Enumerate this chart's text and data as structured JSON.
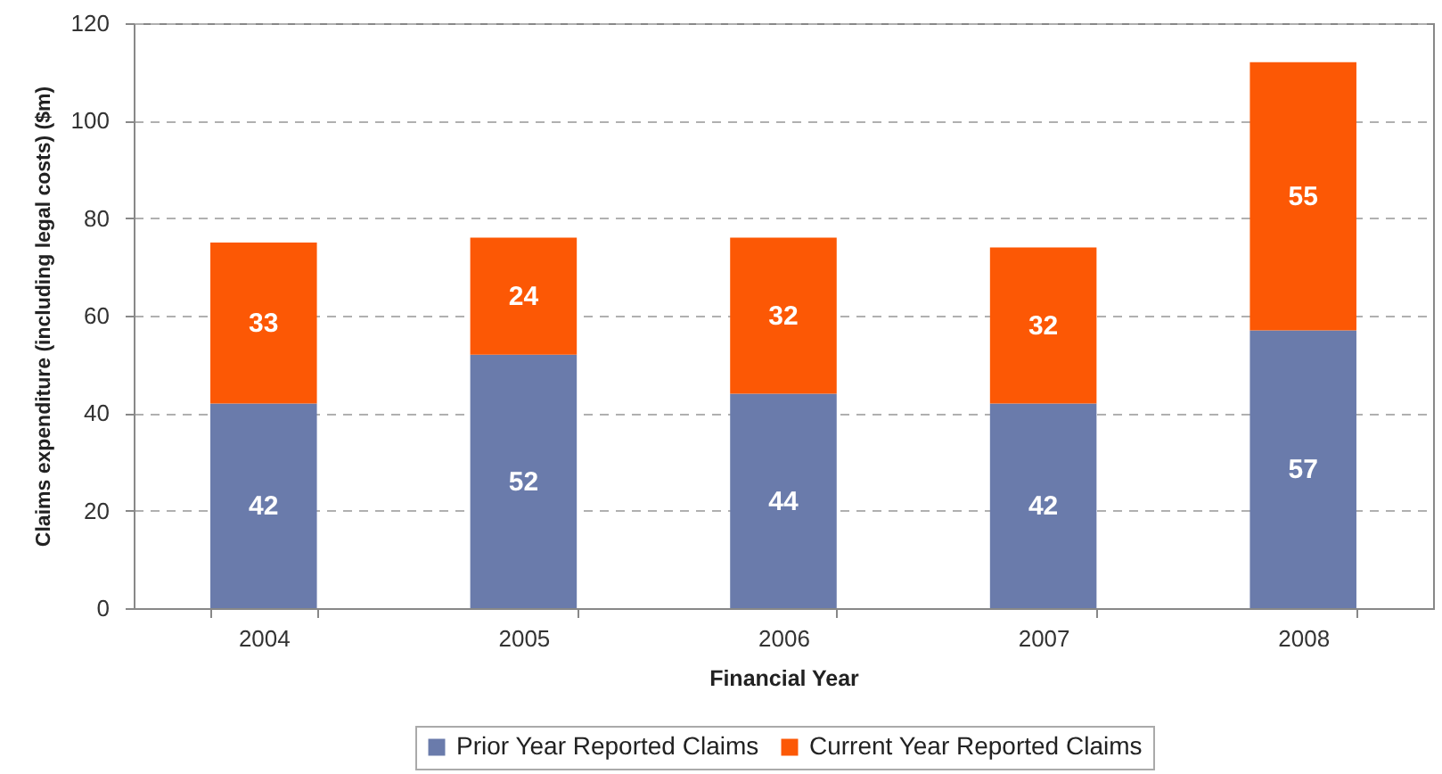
{
  "chart_data": {
    "type": "bar",
    "stacked": true,
    "xlabel": "Financial Year",
    "ylabel": "Claims expenditure (including legal costs) ($m)",
    "categories": [
      "2004",
      "2005",
      "2006",
      "2007",
      "2008"
    ],
    "series": [
      {
        "name": "Prior Year Reported Claims",
        "color": "#6a7bab",
        "values": [
          42,
          52,
          44,
          42,
          57
        ]
      },
      {
        "name": "Current Year Reported Claims",
        "color": "#fc5805",
        "values": [
          33,
          24,
          32,
          32,
          55
        ]
      }
    ],
    "ylim": [
      0,
      120
    ],
    "yticks": [
      0,
      20,
      40,
      60,
      80,
      100,
      120
    ],
    "grid": "y",
    "legend": "bottom",
    "data_labels": true
  }
}
